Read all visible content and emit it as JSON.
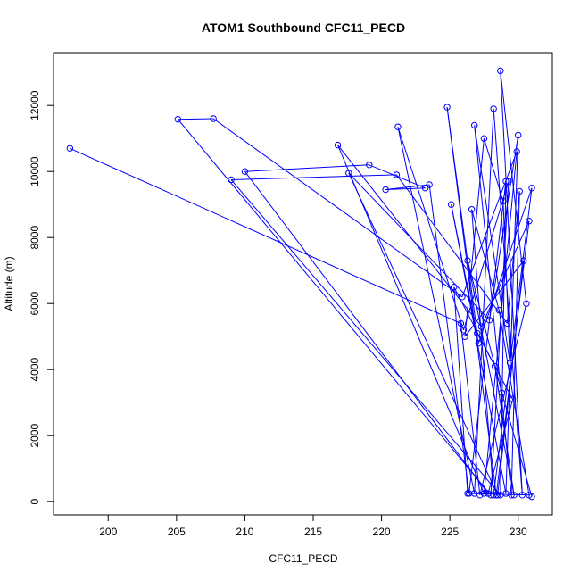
{
  "chart_data": {
    "type": "line",
    "title": "ATOM1 Southbound CFC11_PECD",
    "xlabel": "CFC11_PECD",
    "ylabel": "Altitude (m)",
    "xlim": [
      196,
      232.5
    ],
    "ylim": [
      -400,
      13600
    ],
    "xticks": [
      200,
      205,
      210,
      215,
      220,
      225,
      230
    ],
    "yticks": [
      0,
      2000,
      4000,
      6000,
      8000,
      10000,
      12000
    ],
    "grid": false,
    "marker": "open-circle",
    "line_color": "#0000ff",
    "series": [
      {
        "values": [
          [
            197.2,
            10700
          ],
          [
            225.8,
            5400
          ],
          [
            227.2,
            200
          ],
          [
            230.6,
            6000
          ],
          [
            228.7,
            13050
          ],
          [
            230.3,
            200
          ],
          [
            228.2,
            11900
          ],
          [
            226.8,
            250
          ],
          [
            221.2,
            11350
          ],
          [
            226.0,
            5200
          ],
          [
            229.3,
            9700
          ],
          [
            228.0,
            200
          ],
          [
            205.1,
            11580
          ],
          [
            207.7,
            11600
          ],
          [
            225.9,
            6200
          ],
          [
            229.9,
            10600
          ],
          [
            227.5,
            250
          ],
          [
            216.8,
            10800
          ],
          [
            227.3,
            5300
          ],
          [
            230.8,
            8500
          ],
          [
            228.4,
            200
          ],
          [
            224.8,
            11950
          ],
          [
            227.0,
            5100
          ],
          [
            229.6,
            3100
          ],
          [
            227.8,
            250
          ],
          [
            210.0,
            10000
          ],
          [
            219.1,
            10200
          ],
          [
            223.2,
            9500
          ],
          [
            220.3,
            9450
          ],
          [
            223.5,
            9600
          ],
          [
            226.4,
            250
          ],
          [
            229.1,
            9700
          ],
          [
            228.7,
            200
          ],
          [
            209.0,
            9750
          ],
          [
            221.1,
            9900
          ],
          [
            229.2,
            5400
          ],
          [
            230.1,
            9400
          ],
          [
            229.5,
            200
          ],
          [
            226.8,
            11400
          ],
          [
            229.4,
            4200
          ],
          [
            228.9,
            9100
          ],
          [
            227.5,
            11000
          ],
          [
            226.1,
            5000
          ],
          [
            230.4,
            7300
          ],
          [
            228.5,
            200
          ],
          [
            217.6,
            9950
          ],
          [
            227.9,
            5500
          ],
          [
            230.0,
            11100
          ],
          [
            229.1,
            250
          ],
          [
            225.1,
            9000
          ],
          [
            227.1,
            4800
          ],
          [
            231.0,
            9500
          ],
          [
            228.2,
            200
          ],
          [
            226.6,
            8850
          ],
          [
            228.6,
            5800
          ],
          [
            230.8,
            200
          ],
          [
            226.3,
            250
          ],
          [
            225.3,
            6500
          ],
          [
            228.3,
            4100
          ],
          [
            229.7,
            200
          ],
          [
            226.3,
            7300
          ],
          [
            228.8,
            3300
          ],
          [
            231.0,
            150
          ]
        ]
      }
    ]
  }
}
